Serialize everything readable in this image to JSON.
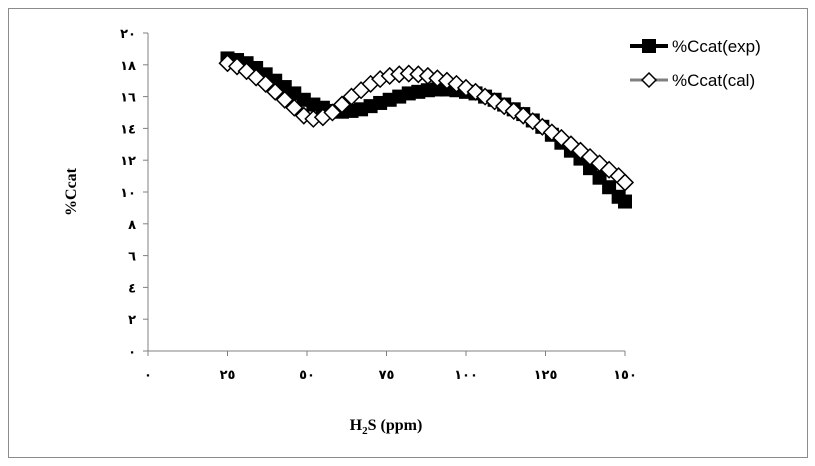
{
  "chart_data": {
    "type": "line",
    "title": "",
    "xlabel_main": "H",
    "xlabel_sub": "2",
    "xlabel_rest": "S (ppm)",
    "ylabel": "%Ccat",
    "xlim": [
      0,
      150
    ],
    "ylim": [
      0,
      20
    ],
    "x_ticks": [
      0,
      25,
      50,
      75,
      100,
      125,
      150
    ],
    "x_tick_labels": [
      "٠",
      "٢٥",
      "٥٠",
      "٧٥",
      "١٠٠",
      "١٢٥",
      "١٥٠"
    ],
    "y_ticks": [
      0,
      2,
      4,
      6,
      8,
      10,
      12,
      14,
      16,
      18,
      20
    ],
    "y_tick_labels": [
      "٠",
      "٢",
      "٤",
      "٦",
      "٨",
      "١٠",
      "١٢",
      "١٤",
      "١٦",
      "١٨",
      "٢٠"
    ],
    "grid": false,
    "legend_position": "top-right",
    "series": [
      {
        "name": "%Ccat(exp)",
        "marker": "square",
        "color": "#000000",
        "x": [
          25,
          28,
          31,
          34,
          37,
          40,
          43,
          46,
          49,
          52,
          55,
          58,
          61,
          64,
          67,
          70,
          73,
          76,
          79,
          82,
          85,
          88,
          91,
          94,
          97,
          100,
          103,
          106,
          109,
          112,
          115,
          118,
          121,
          124,
          127,
          130,
          133,
          136,
          139,
          142,
          145,
          148,
          150
        ],
        "y": [
          18.4,
          18.3,
          18.1,
          17.8,
          17.4,
          17.0,
          16.6,
          16.2,
          15.8,
          15.5,
          15.3,
          15.1,
          15.05,
          15.1,
          15.2,
          15.4,
          15.6,
          15.8,
          16.0,
          16.2,
          16.3,
          16.4,
          16.45,
          16.45,
          16.4,
          16.3,
          16.2,
          16.0,
          15.8,
          15.5,
          15.2,
          14.9,
          14.5,
          14.1,
          13.6,
          13.1,
          12.6,
          12.1,
          11.5,
          10.9,
          10.3,
          9.7,
          9.4
        ]
      },
      {
        "name": "%Ccat(cal)",
        "marker": "diamond",
        "color": "#808080",
        "x": [
          25,
          28,
          31,
          34,
          37,
          40,
          43,
          46,
          49,
          52,
          55,
          58,
          61,
          64,
          67,
          70,
          73,
          76,
          79,
          82,
          85,
          88,
          91,
          94,
          97,
          100,
          103,
          106,
          109,
          112,
          115,
          118,
          121,
          124,
          127,
          130,
          133,
          136,
          139,
          142,
          145,
          148,
          150
        ],
        "y": [
          18.1,
          17.9,
          17.6,
          17.2,
          16.8,
          16.3,
          15.8,
          15.3,
          14.8,
          14.6,
          14.7,
          15.0,
          15.5,
          16.0,
          16.4,
          16.8,
          17.1,
          17.3,
          17.4,
          17.45,
          17.4,
          17.3,
          17.15,
          17.0,
          16.8,
          16.55,
          16.3,
          16.0,
          15.7,
          15.4,
          15.1,
          14.8,
          14.45,
          14.1,
          13.75,
          13.4,
          13.0,
          12.6,
          12.2,
          11.8,
          11.4,
          11.0,
          10.6
        ]
      }
    ]
  }
}
